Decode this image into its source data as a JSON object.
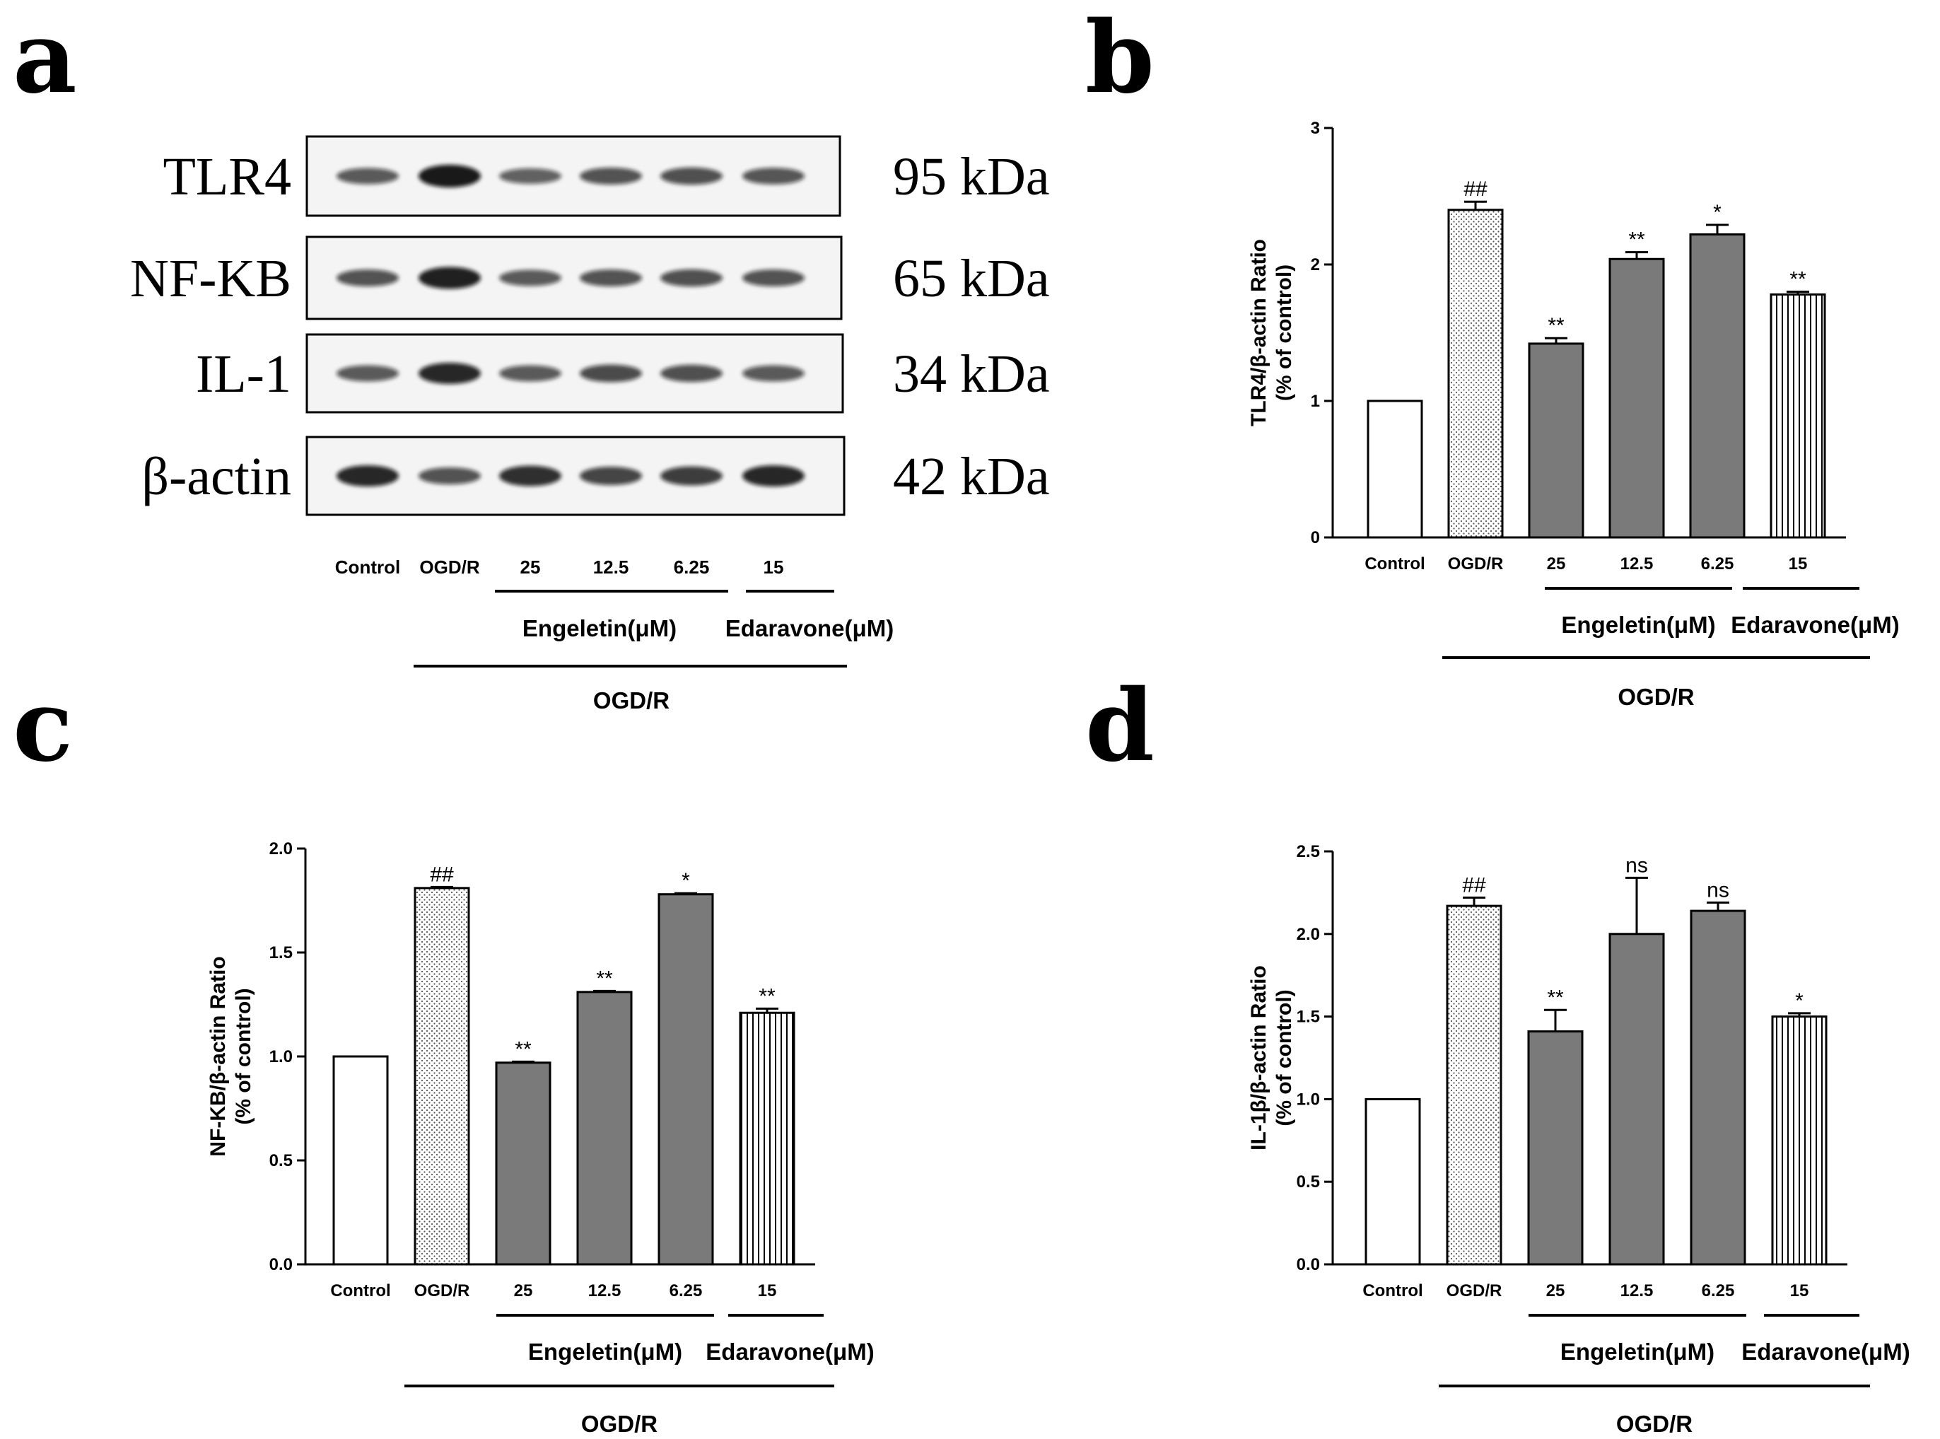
{
  "figure": {
    "panels": [
      "a",
      "b",
      "c",
      "d"
    ]
  },
  "western_blot": {
    "proteins": [
      {
        "name": "TLR4",
        "kda": "95 kDa"
      },
      {
        "name": "NF-KB",
        "kda": "65 kDa"
      },
      {
        "name": "IL-1",
        "kda": "34 kDa"
      },
      {
        "name": "β-actin",
        "kda": "42 kDa"
      }
    ],
    "lanes": [
      "Control",
      "OGD/R",
      "25",
      "12.5",
      "6.25",
      "15"
    ],
    "groups": {
      "engeletin": "Engeletin(μM)",
      "edaravone": "Edaravone(μM)",
      "ogdr": "OGD/R"
    }
  },
  "chart_data": [
    {
      "panel": "b",
      "type": "bar",
      "categories": [
        "Control",
        "OGD/R",
        "25",
        "12.5",
        "6.25",
        "15"
      ],
      "values": [
        1.0,
        2.4,
        1.42,
        2.04,
        2.22,
        1.78
      ],
      "errors": [
        0.0,
        0.06,
        0.04,
        0.05,
        0.07,
        0.02
      ],
      "significance": [
        "",
        "##",
        "**",
        "**",
        "*",
        "**"
      ],
      "ylabel": "TLR4/β-actin Ratio",
      "ylabel2": "(% of control)",
      "ylim": [
        0,
        3
      ],
      "yticks": [
        "0",
        "1",
        "2",
        "3"
      ],
      "groups": {
        "engeletin": "Engeletin(μM)",
        "edaravone": "Edaravone(μM)",
        "ogdr": "OGD/R"
      }
    },
    {
      "panel": "c",
      "type": "bar",
      "categories": [
        "Control",
        "OGD/R",
        "25",
        "12.5",
        "6.25",
        "15"
      ],
      "values": [
        1.0,
        1.81,
        0.97,
        1.31,
        1.78,
        1.21
      ],
      "errors": [
        0.0,
        0.005,
        0.005,
        0.005,
        0.005,
        0.02
      ],
      "significance": [
        "",
        "##",
        "**",
        "**",
        "*",
        "**"
      ],
      "ylabel": "NF-KB/β-actin Ratio",
      "ylabel2": "(% of control)",
      "ylim": [
        0,
        2.0
      ],
      "yticks": [
        "0.0",
        "0.5",
        "1.0",
        "1.5",
        "2.0"
      ],
      "groups": {
        "engeletin": "Engeletin(μM)",
        "edaravone": "Edaravone(μM)",
        "ogdr": "OGD/R"
      }
    },
    {
      "panel": "d",
      "type": "bar",
      "categories": [
        "Control",
        "OGD/R",
        "25",
        "12.5",
        "6.25",
        "15"
      ],
      "values": [
        1.0,
        2.17,
        1.41,
        2.0,
        2.14,
        1.5
      ],
      "errors": [
        0.0,
        0.05,
        0.13,
        0.34,
        0.05,
        0.02
      ],
      "significance": [
        "",
        "##",
        "**",
        "ns",
        "ns",
        "*"
      ],
      "ylabel": "IL-1β/β-actin Ratio",
      "ylabel2": "(% of control)",
      "ylim": [
        0,
        2.5
      ],
      "yticks": [
        "0.0",
        "0.5",
        "1.0",
        "1.5",
        "2.0",
        "2.5"
      ],
      "groups": {
        "engeletin": "Engeletin(μM)",
        "edaravone": "Edaravone(μM)",
        "ogdr": "OGD/R"
      }
    }
  ]
}
